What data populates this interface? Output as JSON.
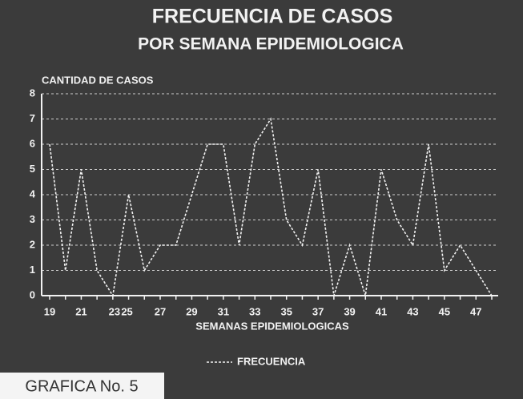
{
  "chart_data": {
    "type": "line",
    "title": "FRECUENCIA DE CASOS",
    "subtitle": "POR SEMANA EPIDEMIOLOGICA",
    "y_label": "CANTIDAD DE CASOS",
    "x_label": "SEMANAS EPIDEMIOLOGICAS",
    "caption": "GRAFICA No. 5",
    "categories": [
      "19",
      null,
      "21",
      null,
      "23",
      "25",
      null,
      "27",
      null,
      "29",
      null,
      "31",
      null,
      "33",
      null,
      "35",
      null,
      "37",
      null,
      "39",
      null,
      "41",
      null,
      "43",
      null,
      "45",
      null,
      "47",
      null
    ],
    "series": [
      {
        "name": "FRECUENCIA",
        "color": "#f2f2f2",
        "values": [
          6,
          1,
          5,
          1,
          0,
          4,
          1,
          2,
          2,
          4,
          6,
          6,
          2,
          6,
          7,
          3,
          2,
          5,
          0,
          2,
          0,
          5,
          3,
          2,
          6,
          1,
          2,
          1,
          0
        ]
      }
    ],
    "ylim": [
      0,
      8
    ],
    "yticks": [
      0,
      1,
      2,
      3,
      4,
      5,
      6,
      7,
      8
    ],
    "grid": true
  }
}
